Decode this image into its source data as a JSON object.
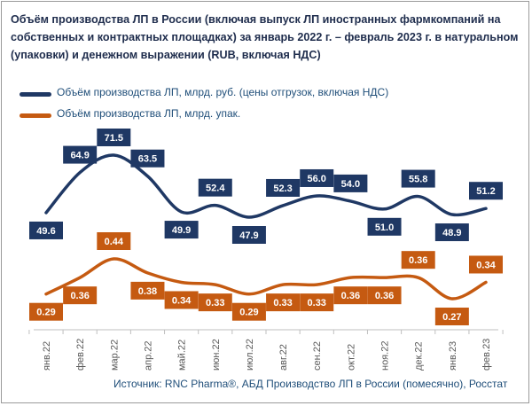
{
  "title": "Объём производства ЛП в России (включая выпуск ЛП иностранных фармкомпаний на собственных и контрактных площадках) за январь 2022 г. – февраль 2023 г. в натуральном (упаковки) и денежном выражении (RUB, включая НДС)",
  "source": "Источник: RNC Pharma®, АБД Производство ЛП в России (помесячно), Росстат",
  "colors": {
    "series_rub": "#1f3864",
    "series_pack": "#c55a11",
    "axis": "#bfbfbf"
  },
  "chart_data": {
    "type": "line",
    "categories": [
      "янв.22",
      "фев.22",
      "мар.22",
      "апр.22",
      "май.22",
      "июн.22",
      "июл.22",
      "авг.22",
      "сен.22",
      "окт.22",
      "ноя.22",
      "дек.22",
      "янв.23",
      "фев.23"
    ],
    "series": [
      {
        "name": "Объём производства ЛП, млрд. руб. (цены отгрузок, включая НДС)",
        "values": [
          49.6,
          64.9,
          71.5,
          63.5,
          49.9,
          52.4,
          47.9,
          52.3,
          56.0,
          54.0,
          51.0,
          55.8,
          48.9,
          51.2
        ],
        "labels": [
          "49.6",
          "64.9",
          "71.5",
          "63.5",
          "49.9",
          "52.4",
          "47.9",
          "52.3",
          "56.0",
          "54.0",
          "51.0",
          "55.8",
          "48.9",
          "51.2"
        ]
      },
      {
        "name": "Объём производства ЛП, млрд. упак.",
        "values": [
          0.29,
          0.36,
          0.44,
          0.38,
          0.34,
          0.33,
          0.29,
          0.33,
          0.33,
          0.36,
          0.36,
          0.36,
          0.27,
          0.34
        ],
        "labels": [
          "0.29",
          "0.36",
          "0.44",
          "0.38",
          "0.34",
          "0.33",
          "0.29",
          "0.33",
          "0.33",
          "0.36",
          "0.36",
          "0.36",
          "0.27",
          "0.34"
        ]
      }
    ],
    "legend_position": "top-left",
    "grid": false
  }
}
